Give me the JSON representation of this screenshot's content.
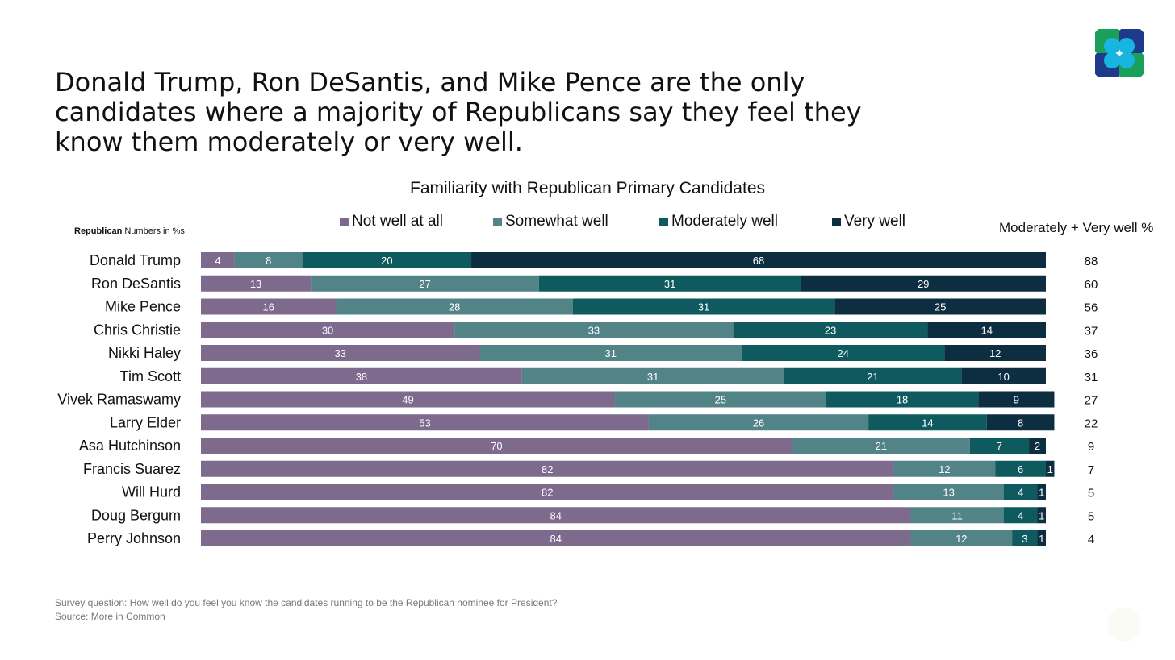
{
  "headline": "Donald Trump, Ron DeSantis, and Mike Pence are the only candidates where a majority of Republicans say they feel they know them moderately or very well.",
  "subnote": {
    "bold": "Republican",
    "rest": " Numbers in %s"
  },
  "mv_header": "Moderately + Very well %",
  "footnote": {
    "line1": "Survey question: How well do you feel you know the candidates running to be the Republican nominee for President?",
    "line2": "Source: More in Common"
  },
  "colors": {
    "not_well": "#7d6a8d",
    "somewhat": "#528487",
    "moderately": "#0e5a5f",
    "very_well": "#0d2d40",
    "logo_green": "#1aa05a",
    "logo_navy": "#1e3a8a",
    "logo_cyan": "#17b5e0"
  },
  "chart_data": {
    "type": "bar",
    "orientation": "horizontal",
    "stacked": true,
    "title": "Familiarity with Republican Primary Candidates",
    "legend_position": "top",
    "grid": false,
    "xlim": [
      0,
      100
    ],
    "categories": [
      "Donald Trump",
      "Ron DeSantis",
      "Mike Pence",
      "Chris Christie",
      "Nikki Haley",
      "Tim Scott",
      "Vivek Ramaswamy",
      "Larry Elder",
      "Asa Hutchinson",
      "Francis Suarez",
      "Will Hurd",
      "Doug Bergum",
      "Perry Johnson"
    ],
    "series": [
      {
        "name": "Not well at all",
        "color": "#7d6a8d",
        "values": [
          4,
          13,
          16,
          30,
          33,
          38,
          49,
          53,
          70,
          82,
          82,
          84,
          84
        ]
      },
      {
        "name": "Somewhat well",
        "color": "#528487",
        "values": [
          8,
          27,
          28,
          33,
          31,
          31,
          25,
          26,
          21,
          12,
          13,
          11,
          12
        ]
      },
      {
        "name": "Moderately well",
        "color": "#0e5a5f",
        "values": [
          20,
          31,
          31,
          23,
          24,
          21,
          18,
          14,
          7,
          6,
          4,
          4,
          3
        ]
      },
      {
        "name": "Very well",
        "color": "#0d2d40",
        "values": [
          68,
          29,
          25,
          14,
          12,
          10,
          9,
          8,
          2,
          1,
          1,
          1,
          1
        ]
      }
    ],
    "moderately_plus_very_well": [
      88,
      60,
      56,
      37,
      36,
      31,
      27,
      22,
      9,
      7,
      5,
      5,
      4
    ]
  }
}
